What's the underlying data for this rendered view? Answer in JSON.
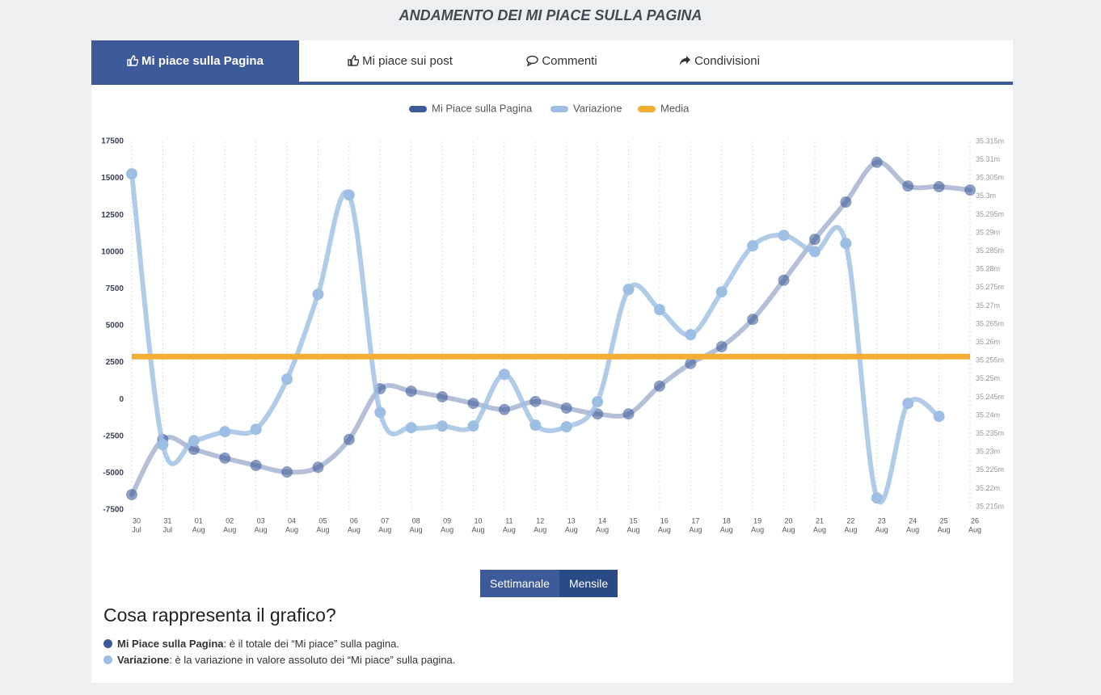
{
  "header": {
    "title": "ANDAMENTO DEI MI PIACE SULLA PAGINA"
  },
  "tabs": [
    "Mi piace sulla Pagina",
    "Mi piace sui post",
    "Commenti",
    "Condivisioni"
  ],
  "chart_data": {
    "type": "line",
    "categories": [
      [
        "30",
        "Jul"
      ],
      [
        "31",
        "Jul"
      ],
      [
        "01",
        "Aug"
      ],
      [
        "02",
        "Aug"
      ],
      [
        "03",
        "Aug"
      ],
      [
        "04",
        "Aug"
      ],
      [
        "05",
        "Aug"
      ],
      [
        "06",
        "Aug"
      ],
      [
        "07",
        "Aug"
      ],
      [
        "08",
        "Aug"
      ],
      [
        "09",
        "Aug"
      ],
      [
        "10",
        "Aug"
      ],
      [
        "11",
        "Aug"
      ],
      [
        "12",
        "Aug"
      ],
      [
        "13",
        "Aug"
      ],
      [
        "14",
        "Aug"
      ],
      [
        "15",
        "Aug"
      ],
      [
        "16",
        "Aug"
      ],
      [
        "17",
        "Aug"
      ],
      [
        "18",
        "Aug"
      ],
      [
        "19",
        "Aug"
      ],
      [
        "20",
        "Aug"
      ],
      [
        "21",
        "Aug"
      ],
      [
        "22",
        "Aug"
      ],
      [
        "23",
        "Aug"
      ],
      [
        "24",
        "Aug"
      ],
      [
        "25",
        "Aug"
      ],
      [
        "26",
        "Aug"
      ]
    ],
    "series": [
      {
        "name": "Mi Piace sulla Pagina",
        "color": "#3d5a99",
        "axis": "y2",
        "values": [
          35218300,
          35233400,
          35230700,
          35228300,
          35226300,
          35224500,
          35225800,
          35233400,
          35247300,
          35246600,
          35245100,
          35243300,
          35241600,
          35243800,
          35242000,
          35240400,
          35240400,
          35248000,
          35254200,
          35258800,
          35266300,
          35277000,
          35288200,
          35298400,
          35309300,
          35302800,
          35302600,
          35301700
        ]
      },
      {
        "name": "Variazione",
        "color": "#9dbfe3",
        "values": [
          15300,
          -3070,
          -2800,
          -2190,
          -2030,
          1370,
          7130,
          13870,
          -880,
          -1920,
          -1810,
          -1810,
          1700,
          -1750,
          -1860,
          -160,
          7460,
          6090,
          4390,
          7290,
          10420,
          11130,
          10030,
          10580,
          -6690,
          -270,
          -1150,
          null
        ]
      }
    ],
    "average": {
      "name": "Media",
      "color": "#f5ae34",
      "value": 2900
    },
    "ylim": [
      -7500,
      17500
    ],
    "yticks": [
      -7500,
      -5000,
      -2500,
      0,
      2500,
      5000,
      7500,
      10000,
      12500,
      15000,
      17500
    ],
    "y2lim": [
      35215000,
      35315000
    ],
    "y2ticks": [
      {
        "value": 35215000,
        "label": "35.215m"
      },
      {
        "value": 35220000,
        "label": "35.22m"
      },
      {
        "value": 35225000,
        "label": "35.225m"
      },
      {
        "value": 35230000,
        "label": "35.23m"
      },
      {
        "value": 35235000,
        "label": "35.235m"
      },
      {
        "value": 35240000,
        "label": "35.24m"
      },
      {
        "value": 35245000,
        "label": "35.245m"
      },
      {
        "value": 35250000,
        "label": "35.25m"
      },
      {
        "value": 35255000,
        "label": "35.255m"
      },
      {
        "value": 35260000,
        "label": "35.26m"
      },
      {
        "value": 35265000,
        "label": "35.265m"
      },
      {
        "value": 35270000,
        "label": "35.27m"
      },
      {
        "value": 35275000,
        "label": "35.275m"
      },
      {
        "value": 35280000,
        "label": "35.28m"
      },
      {
        "value": 35285000,
        "label": "35.285m"
      },
      {
        "value": 35290000,
        "label": "35.29m"
      },
      {
        "value": 35295000,
        "label": "35.295m"
      },
      {
        "value": 35300000,
        "label": "35.3m"
      },
      {
        "value": 35305000,
        "label": "35.305m"
      },
      {
        "value": 35310000,
        "label": "35.31m"
      },
      {
        "value": 35315000,
        "label": "35.315m"
      }
    ],
    "grid": "x",
    "legend": "top"
  },
  "buttons": [
    "Settimanale",
    "Mensile"
  ],
  "explanation": {
    "heading": "Cosa rappresenta il grafico?",
    "items": [
      {
        "term": "Mi Piace sulla Pagina",
        "text": ": è il totale dei “Mi piace” sulla pagina."
      },
      {
        "term": "Variazione",
        "text": ": è la variazione in valore assoluto dei “Mi piace” sulla pagina."
      }
    ]
  }
}
